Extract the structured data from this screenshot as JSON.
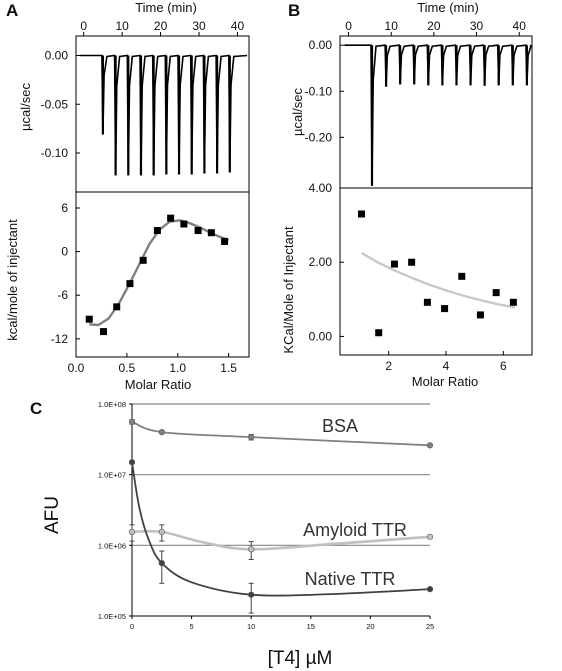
{
  "colors": {
    "itc_trace": "#000000",
    "fit_curve_A": "#808080",
    "fit_curve_B": "#c8c8c8",
    "bsa": "#808080",
    "amyloid": "#c0c0c0",
    "native": "#404040",
    "reference_lines": "#888888"
  },
  "chart_data": [
    {
      "panel": "A",
      "part": "top",
      "type": "line",
      "panel_label": "A",
      "xlabel": "Time (min)",
      "ylabel": "µcal/sec",
      "xlim": [
        -2,
        43
      ],
      "ylim": [
        -0.14,
        0.02
      ],
      "xticks": [
        "0",
        "10",
        "20",
        "30",
        "40"
      ],
      "yticks": [
        "0.00",
        "-0.05",
        "-0.10"
      ],
      "xtick_values": [
        0,
        10,
        20,
        30,
        40
      ],
      "ytick_values": [
        0,
        -0.05,
        -0.1
      ],
      "baseline": 0.0,
      "injections": [
        {
          "t": 5.0,
          "depth": -0.081
        },
        {
          "t": 8.3,
          "depth": -0.123
        },
        {
          "t": 11.6,
          "depth": -0.123
        },
        {
          "t": 14.9,
          "depth": -0.123
        },
        {
          "t": 18.2,
          "depth": -0.123
        },
        {
          "t": 21.5,
          "depth": -0.122
        },
        {
          "t": 24.8,
          "depth": -0.122
        },
        {
          "t": 28.1,
          "depth": -0.122
        },
        {
          "t": 31.4,
          "depth": -0.121
        },
        {
          "t": 34.7,
          "depth": -0.121
        },
        {
          "t": 38.0,
          "depth": -0.12
        }
      ]
    },
    {
      "panel": "A",
      "part": "bottom",
      "type": "scatter",
      "xlabel": "Molar Ratio",
      "ylabel": "kcal/mole of injectant",
      "xlim": [
        0,
        1.7
      ],
      "ylim": [
        -14.5,
        8.2
      ],
      "xticks": [
        "0.0",
        "0.5",
        "1.0",
        "1.5"
      ],
      "yticks": [
        "6",
        "0",
        "-6",
        "-12"
      ],
      "xtick_values": [
        0,
        0.5,
        1.0,
        1.5
      ],
      "ytick_values": [
        6,
        0,
        -6,
        -12
      ],
      "points": [
        {
          "x": 0.13,
          "y": -9.3
        },
        {
          "x": 0.27,
          "y": -11.0
        },
        {
          "x": 0.4,
          "y": -7.6
        },
        {
          "x": 0.53,
          "y": -4.4
        },
        {
          "x": 0.66,
          "y": -1.2
        },
        {
          "x": 0.8,
          "y": 2.9
        },
        {
          "x": 0.93,
          "y": 4.6
        },
        {
          "x": 1.06,
          "y": 3.8
        },
        {
          "x": 1.2,
          "y": 2.9
        },
        {
          "x": 1.33,
          "y": 2.6
        },
        {
          "x": 1.46,
          "y": 1.4
        }
      ],
      "fit": [
        {
          "x": 0.13,
          "y": -10.0
        },
        {
          "x": 0.22,
          "y": -10.1
        },
        {
          "x": 0.32,
          "y": -9.2
        },
        {
          "x": 0.42,
          "y": -7.2
        },
        {
          "x": 0.52,
          "y": -4.6
        },
        {
          "x": 0.62,
          "y": -1.8
        },
        {
          "x": 0.72,
          "y": 1.0
        },
        {
          "x": 0.82,
          "y": 3.0
        },
        {
          "x": 0.92,
          "y": 4.1
        },
        {
          "x": 1.02,
          "y": 4.3
        },
        {
          "x": 1.12,
          "y": 3.9
        },
        {
          "x": 1.22,
          "y": 3.3
        },
        {
          "x": 1.32,
          "y": 2.6
        },
        {
          "x": 1.42,
          "y": 2.0
        },
        {
          "x": 1.5,
          "y": 1.6
        }
      ]
    },
    {
      "panel": "B",
      "part": "top",
      "type": "line",
      "panel_label": "B",
      "xlabel": "Time (min)",
      "ylabel": "µcal/sec",
      "xlim": [
        -2,
        43
      ],
      "ylim": [
        -0.31,
        0.02
      ],
      "xticks": [
        "0",
        "10",
        "20",
        "30",
        "40"
      ],
      "yticks": [
        "0.00",
        "-0.10",
        "-0.20"
      ],
      "xtick_values": [
        0,
        10,
        20,
        30,
        40
      ],
      "ytick_values": [
        0,
        -0.1,
        -0.2
      ],
      "baseline": 0.0,
      "injections": [
        {
          "t": 5.5,
          "depth": -0.305
        },
        {
          "t": 8.8,
          "depth": -0.09
        },
        {
          "t": 12.1,
          "depth": -0.085
        },
        {
          "t": 15.4,
          "depth": -0.085
        },
        {
          "t": 18.7,
          "depth": -0.087
        },
        {
          "t": 22.0,
          "depth": -0.087
        },
        {
          "t": 25.3,
          "depth": -0.087
        },
        {
          "t": 28.6,
          "depth": -0.087
        },
        {
          "t": 31.9,
          "depth": -0.088
        },
        {
          "t": 35.2,
          "depth": -0.087
        },
        {
          "t": 38.5,
          "depth": -0.087
        },
        {
          "t": 41.8,
          "depth": -0.087
        }
      ]
    },
    {
      "panel": "B",
      "part": "bottom",
      "type": "scatter",
      "xlabel": "Molar Ratio",
      "ylabel": "KCal/Mole of Injectant",
      "xlim": [
        0.3,
        7.0
      ],
      "ylim": [
        -0.5,
        4.0
      ],
      "xticks": [
        "2",
        "4",
        "6"
      ],
      "yticks": [
        "4.00",
        "2.00",
        "0.00"
      ],
      "xtick_values": [
        2,
        4,
        6
      ],
      "ytick_values": [
        4,
        2,
        0
      ],
      "points": [
        {
          "x": 1.05,
          "y": 3.3
        },
        {
          "x": 1.65,
          "y": 0.1
        },
        {
          "x": 2.2,
          "y": 1.95
        },
        {
          "x": 2.8,
          "y": 2.0
        },
        {
          "x": 3.35,
          "y": 0.92
        },
        {
          "x": 3.95,
          "y": 0.75
        },
        {
          "x": 4.55,
          "y": 1.62
        },
        {
          "x": 5.2,
          "y": 0.58
        },
        {
          "x": 5.75,
          "y": 1.18
        },
        {
          "x": 6.35,
          "y": 0.92
        }
      ],
      "fit": [
        {
          "x": 1.05,
          "y": 2.25
        },
        {
          "x": 1.6,
          "y": 2.0
        },
        {
          "x": 2.2,
          "y": 1.78
        },
        {
          "x": 2.8,
          "y": 1.58
        },
        {
          "x": 3.4,
          "y": 1.4
        },
        {
          "x": 4.0,
          "y": 1.24
        },
        {
          "x": 4.6,
          "y": 1.1
        },
        {
          "x": 5.2,
          "y": 0.98
        },
        {
          "x": 5.8,
          "y": 0.87
        },
        {
          "x": 6.4,
          "y": 0.78
        }
      ]
    },
    {
      "panel": "C",
      "type": "line",
      "panel_label": "C",
      "xlabel": "[T4] µM",
      "ylabel": "AFU",
      "y_scale": "log",
      "xlim": [
        0,
        25
      ],
      "ylim": [
        100000,
        100000000
      ],
      "xticks": [
        "0",
        "5",
        "10",
        "15",
        "20",
        "25"
      ],
      "yticks": [
        "1.0E+08",
        "1.0E+07",
        "1.0E+06",
        "1.0E+05"
      ],
      "xtick_values": [
        0,
        5,
        10,
        15,
        20,
        25
      ],
      "ytick_values": [
        100000000,
        10000000,
        1000000,
        100000
      ],
      "reference_lines": [
        100000000,
        10000000,
        1000000
      ],
      "series": [
        {
          "name": "BSA",
          "key": "bsa",
          "points": [
            {
              "x": 0,
              "y": 56000000,
              "err": 4000000
            },
            {
              "x": 2.5,
              "y": 40000000,
              "err": 0
            },
            {
              "x": 10,
              "y": 34000000,
              "err": 3000000
            },
            {
              "x": 25,
              "y": 26000000,
              "err": 0
            }
          ]
        },
        {
          "name": "Amyloid TTR",
          "key": "amyloid",
          "points": [
            {
              "x": 0,
              "y": 1550000,
              "err": 400000
            },
            {
              "x": 2.5,
              "y": 1550000,
              "err": 400000
            },
            {
              "x": 10,
              "y": 880000,
              "err": 250000
            },
            {
              "x": 25,
              "y": 1320000,
              "err": 0
            }
          ]
        },
        {
          "name": "Native TTR",
          "key": "native",
          "points": [
            {
              "x": 0,
              "y": 15000000,
              "err": 0
            },
            {
              "x": 2.5,
              "y": 560000,
              "err": 270000
            },
            {
              "x": 10,
              "y": 200000,
              "err": 90000
            },
            {
              "x": 25,
              "y": 240000,
              "err": 0
            }
          ]
        }
      ]
    }
  ]
}
